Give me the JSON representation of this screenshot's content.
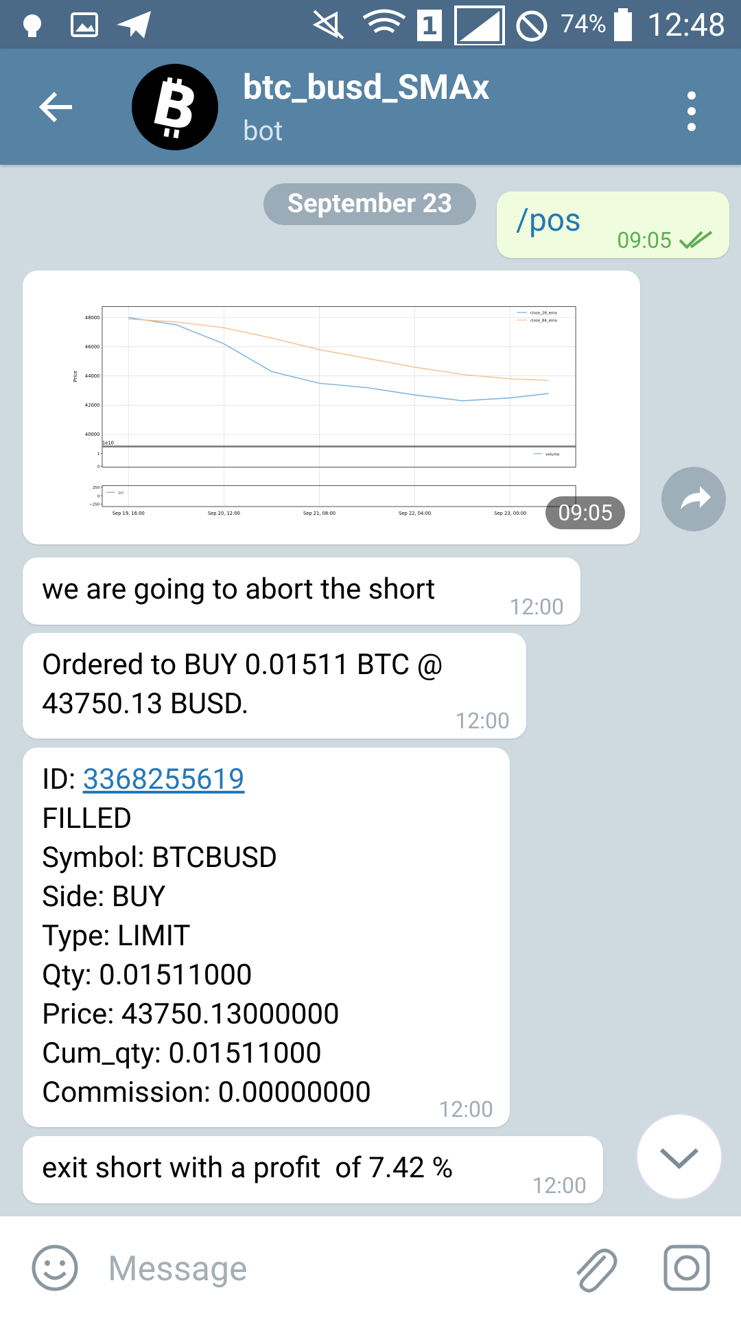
{
  "status_bar": {
    "battery": "74%",
    "time": "12:48"
  },
  "header": {
    "title": "btc_busd_SMAx",
    "subtitle": "bot"
  },
  "date": "September 23",
  "messages": [
    {
      "text": "/pos",
      "time": "09:05"
    },
    {
      "time": "09:05",
      "chart_data": {
        "type": "line",
        "y_label": "Price",
        "offset_label": "1e10",
        "x": [
          0,
          10,
          20,
          30,
          40,
          50,
          60,
          70,
          80,
          88
        ],
        "series": [
          {
            "name": "close_28_ema",
            "color": "#77b3de",
            "values": [
              48000,
              47500,
              46200,
              44300,
              43500,
              43200,
              42700,
              42300,
              42500,
              42800
            ]
          },
          {
            "name": "close_84_ema",
            "color": "#f7c08f",
            "values": [
              47900,
              47700,
              47300,
              46600,
              45800,
              45200,
              44600,
              44100,
              43800,
              43700
            ]
          }
        ],
        "xlim": [
          -5.5,
          93.7
        ],
        "ylim": [
          39200,
          48750
        ],
        "xticks": [
          {
            "value": 0,
            "label": "Sep 19, 16:00"
          },
          {
            "value": 20,
            "label": "Sep 20, 12:00"
          },
          {
            "value": 40,
            "label": "Sep 21, 08:00"
          },
          {
            "value": 60,
            "label": "Sep 22, 04:00"
          },
          {
            "value": 80,
            "label": "Sep 23, 00:00"
          }
        ],
        "yticks": [
          40000,
          42000,
          44000,
          46000,
          48000
        ],
        "grid": true,
        "legend": "upper right",
        "volume_panel": {
          "legend": "volume",
          "ylim": [
            -0.07,
            1.53
          ],
          "yticks": [
            0,
            1
          ]
        },
        "cci_panel": {
          "legend": "cci",
          "ylim": [
            -325,
            300
          ],
          "yticks": [
            {
              "value": -250,
              "label": "−250"
            },
            0,
            250
          ]
        }
      }
    },
    {
      "text": "we are going to abort the short",
      "time": "12:00"
    },
    {
      "text": "Ordered to BUY 0.01511 BTC @ 43750.13 BUSD.",
      "time": "12:00"
    },
    {
      "id_label": "ID:",
      "id": "3368255619",
      "lines": [
        "FILLED",
        "Symbol: BTCBUSD",
        "Side: BUY",
        "Type: LIMIT",
        "Qty: 0.01511000",
        "Price: 43750.13000000",
        "Cum_qty: 0.01511000",
        "Commission: 0.00000000"
      ],
      "time": "12:00"
    },
    {
      "text": "exit short with a profit  of 7.42 %",
      "time": "12:00"
    }
  ],
  "input": {
    "placeholder": "Message"
  }
}
